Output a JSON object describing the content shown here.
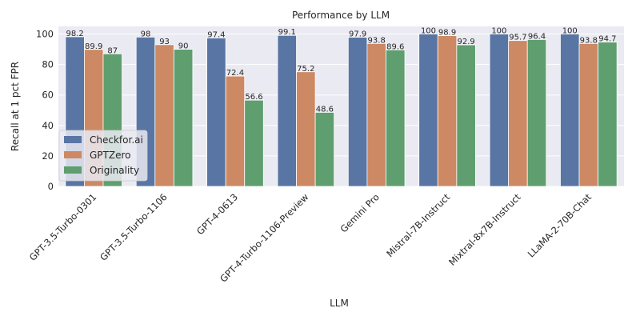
{
  "chart_data": {
    "type": "bar",
    "title": "Performance by LLM",
    "xlabel": "LLM",
    "ylabel": "Recall at 1 pct FPR",
    "ylim": [
      0,
      105
    ],
    "yticks": [
      0,
      20,
      40,
      60,
      80,
      100
    ],
    "grid": true,
    "legend_position": "center-left",
    "categories": [
      "GPT-3.5-Turbo-0301",
      "GPT-3.5-Turbo-1106",
      "GPT-4-0613",
      "GPT-4-Turbo-1106-Preview",
      "Gemini Pro",
      "Mistral-7B-Instruct",
      "Mixtral-8x7B-Instruct",
      "LLaMA-2-70B-Chat"
    ],
    "series": [
      {
        "name": "Checkfor.ai",
        "color": "#5875a4",
        "values": [
          98.2,
          98,
          97.4,
          99.1,
          97.9,
          100,
          100,
          100
        ]
      },
      {
        "name": "GPTZero",
        "color": "#cc8963",
        "values": [
          89.9,
          93,
          72.4,
          75.2,
          93.8,
          98.9,
          95.7,
          93.8
        ]
      },
      {
        "name": "Originality",
        "color": "#5f9e6e",
        "values": [
          87,
          90,
          56.6,
          48.6,
          89.6,
          92.9,
          96.4,
          94.7
        ]
      }
    ]
  }
}
